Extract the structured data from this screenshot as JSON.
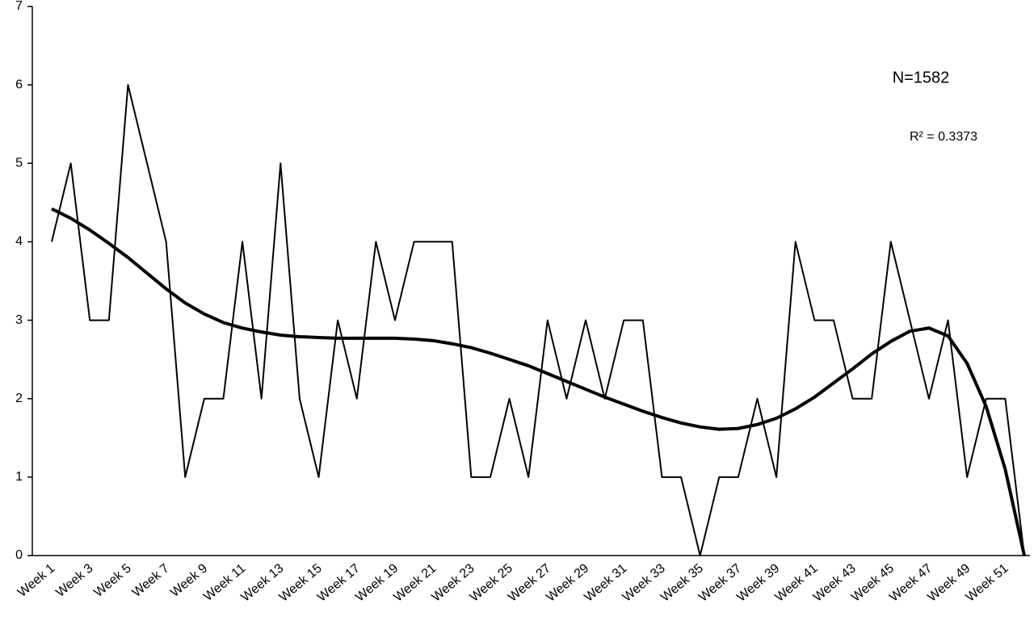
{
  "chart_data": {
    "type": "line",
    "categories": [
      "Week 1",
      null,
      "Week 3",
      null,
      "Week 5",
      null,
      "Week 7",
      null,
      "Week 9",
      null,
      "Week 11",
      null,
      "Week 13",
      null,
      "Week 15",
      null,
      "Week 17",
      null,
      "Week 19",
      null,
      "Week 21",
      null,
      "Week 23",
      null,
      "Week 25",
      null,
      "Week 27",
      null,
      "Week 29",
      null,
      "Week 31",
      null,
      "Week 33",
      null,
      "Week 35",
      null,
      "Week 37",
      null,
      "Week 39",
      null,
      "Week 41",
      null,
      "Week 43",
      null,
      "Week 45",
      null,
      "Week 47",
      null,
      "Week 49",
      null,
      "Week 51",
      null
    ],
    "series": [
      {
        "color": "#000000",
        "width": 2,
        "values": [
          4,
          5,
          3,
          3,
          6,
          5,
          4,
          1,
          2,
          2,
          4,
          2,
          5,
          2,
          1,
          3,
          2,
          4,
          3,
          4,
          4,
          4,
          1,
          1,
          2,
          1,
          3,
          2,
          3,
          2,
          3,
          3,
          1,
          1,
          0,
          1,
          1,
          2,
          1,
          4,
          3,
          3,
          2,
          2,
          4,
          3,
          2,
          3,
          1,
          2,
          2,
          0
        ]
      },
      {
        "color": "#000000",
        "width": 4,
        "values": [
          4.42,
          4.3,
          4.15,
          3.98,
          3.8,
          3.6,
          3.4,
          3.22,
          3.08,
          2.97,
          2.9,
          2.85,
          2.81,
          2.79,
          2.78,
          2.77,
          2.77,
          2.77,
          2.77,
          2.76,
          2.74,
          2.7,
          2.65,
          2.58,
          2.5,
          2.42,
          2.32,
          2.22,
          2.12,
          2.02,
          1.93,
          1.84,
          1.76,
          1.69,
          1.64,
          1.61,
          1.62,
          1.67,
          1.75,
          1.87,
          2.02,
          2.2,
          2.38,
          2.57,
          2.73,
          2.86,
          2.9,
          2.8,
          2.45,
          1.9,
          1.1,
          0
        ]
      }
    ],
    "annotations": [
      "N=1582",
      "R² = 0.3373"
    ],
    "ylim": [
      0,
      7
    ],
    "yticks": [
      0,
      1,
      2,
      3,
      4,
      5,
      6,
      7
    ],
    "grid": false
  }
}
